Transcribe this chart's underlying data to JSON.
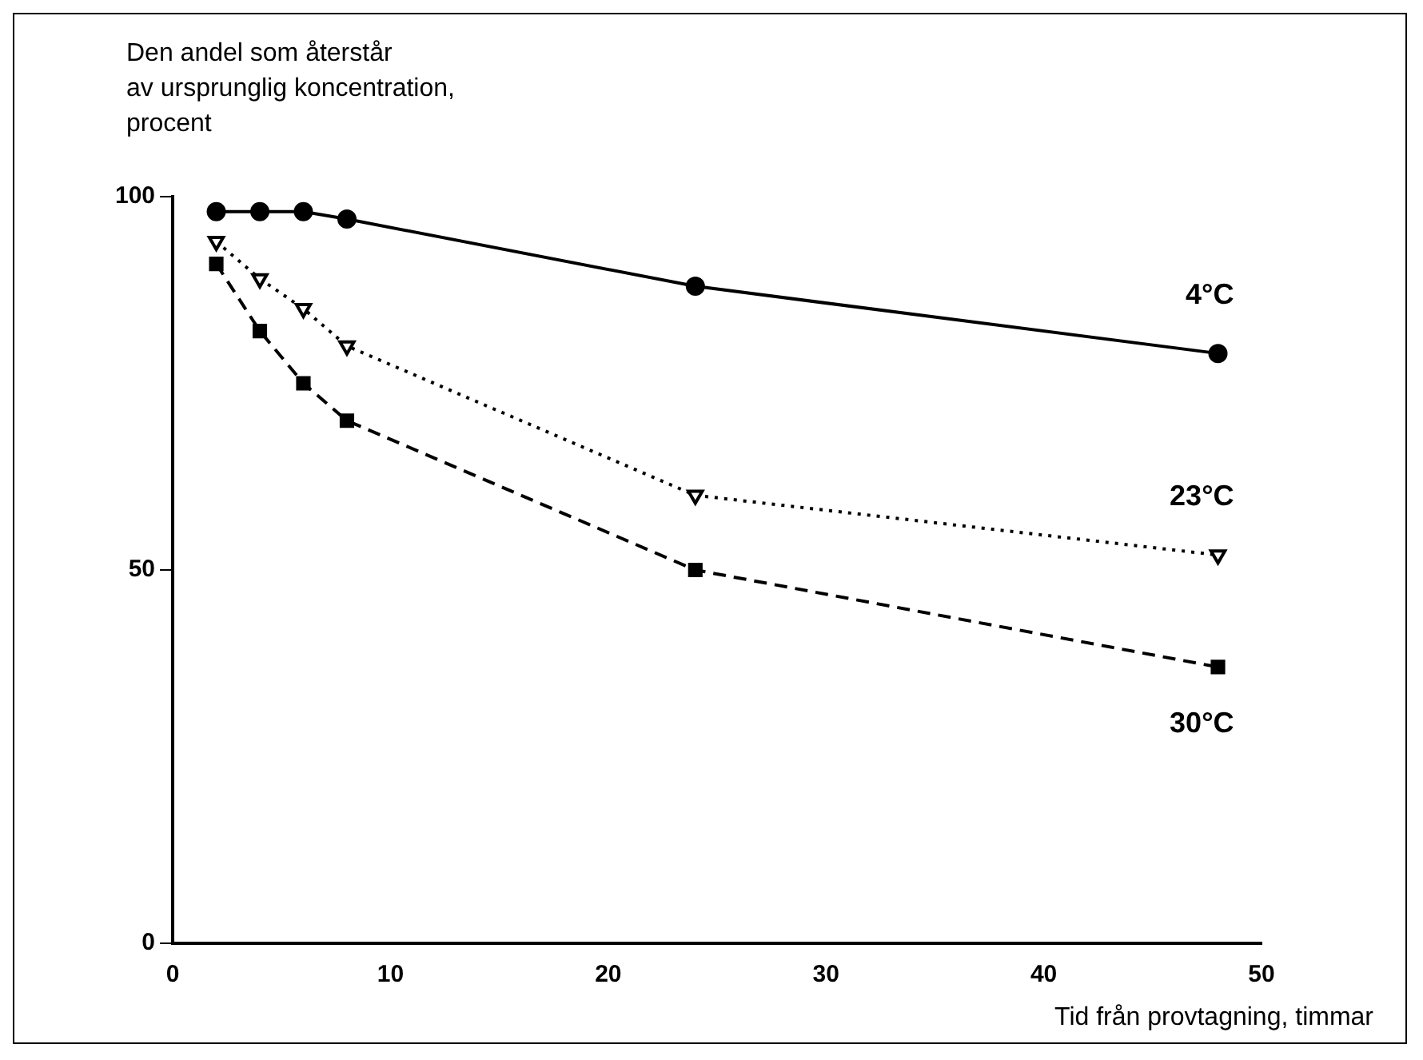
{
  "chart_data": {
    "type": "line",
    "ylabel": "Den andel som återstår\nav ursprunglig koncentration,\nprocent",
    "xlabel": "Tid från provtagning, timmar",
    "x": [
      2,
      4,
      6,
      8,
      24,
      48
    ],
    "xlim": [
      0,
      50
    ],
    "xticks": [
      0,
      10,
      20,
      30,
      40,
      50
    ],
    "ylim": [
      0,
      100
    ],
    "yticks": [
      0,
      50,
      100
    ],
    "grid": false,
    "legend": false,
    "series": [
      {
        "name": "4°C",
        "color": "#000000",
        "marker": "circle",
        "line_style": "solid",
        "values": [
          98,
          98,
          98,
          97,
          88,
          79
        ]
      },
      {
        "name": "23°C",
        "color": "#000000",
        "marker": "triangle",
        "line_style": "dotted",
        "values": [
          94,
          89,
          85,
          80,
          60,
          52
        ]
      },
      {
        "name": "30°C",
        "color": "#000000",
        "marker": "square",
        "line_style": "dashed",
        "values": [
          91,
          82,
          75,
          70,
          50,
          37
        ]
      }
    ]
  }
}
